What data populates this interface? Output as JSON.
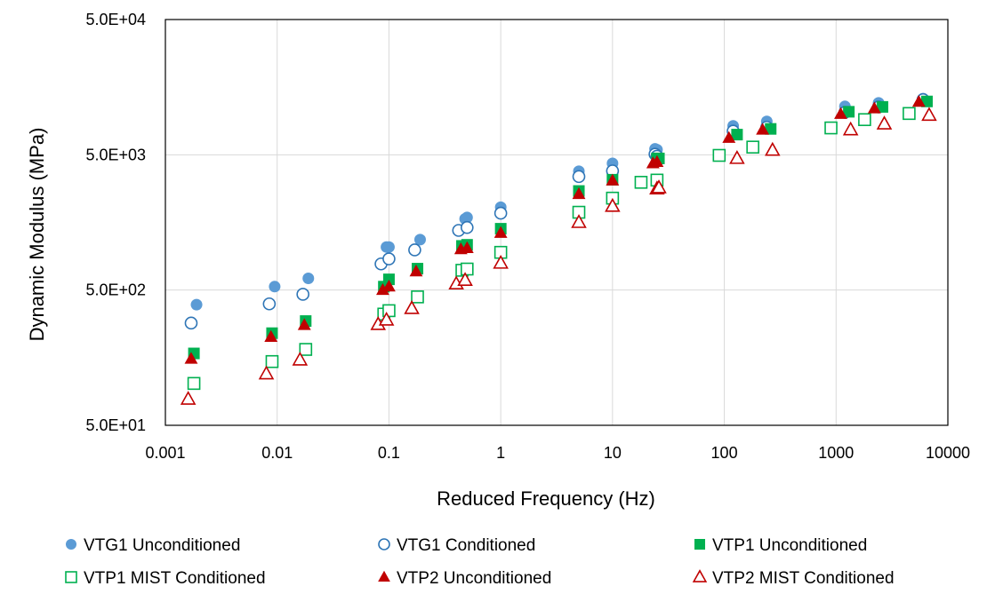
{
  "chart_data": {
    "type": "scatter",
    "xlabel": "Reduced Frequency (Hz)",
    "ylabel": "Dynamic Modulus (MPa)",
    "x_scale": "log",
    "y_scale": "log",
    "xlim": [
      0.001,
      10000
    ],
    "ylim": [
      50,
      50000
    ],
    "x_ticks": [
      0.001,
      0.01,
      0.1,
      1,
      10,
      100,
      1000,
      10000
    ],
    "x_tick_labels": [
      "0.001",
      "0.01",
      "0.1",
      "1",
      "10",
      "100",
      "1000",
      "10000"
    ],
    "y_ticks": [
      50,
      500,
      5000,
      50000
    ],
    "y_tick_labels": [
      "5.0E+01",
      "5.0E+02",
      "5.0E+03",
      "5.0E+04"
    ],
    "grid": true,
    "legend_position": "bottom",
    "series": [
      {
        "name": "VTG1 Unconditioned",
        "marker": "circle",
        "filled": true,
        "color": "#5b9bd5",
        "points": [
          [
            0.0019,
            390
          ],
          [
            0.0095,
            530
          ],
          [
            0.019,
            610
          ],
          [
            0.095,
            1040
          ],
          [
            0.1,
            1040
          ],
          [
            0.19,
            1180
          ],
          [
            0.48,
            1680
          ],
          [
            0.5,
            1720
          ],
          [
            1.0,
            2050
          ],
          [
            5.0,
            3780
          ],
          [
            10,
            4320
          ],
          [
            24,
            5530
          ],
          [
            25,
            5450
          ],
          [
            120,
            8180
          ],
          [
            240,
            8820
          ],
          [
            1200,
            11400
          ],
          [
            2400,
            12100
          ],
          [
            6000,
            13000
          ]
        ]
      },
      {
        "name": "VTG1 Conditioned",
        "marker": "circle",
        "filled": false,
        "color": "#2e75b6",
        "points": [
          [
            0.0017,
            285
          ],
          [
            0.0085,
            395
          ],
          [
            0.017,
            465
          ],
          [
            0.085,
            780
          ],
          [
            0.1,
            850
          ],
          [
            0.17,
            990
          ],
          [
            0.42,
            1380
          ],
          [
            0.5,
            1450
          ],
          [
            1.0,
            1850
          ],
          [
            5.0,
            3450
          ],
          [
            10,
            3800
          ],
          [
            24,
            5050
          ],
          [
            25,
            4880
          ],
          [
            120,
            7480
          ],
          [
            240,
            8000
          ],
          [
            1200,
            10300
          ],
          [
            2400,
            11300
          ],
          [
            6000,
            12800
          ]
        ]
      },
      {
        "name": "VTP1 Unconditioned",
        "marker": "square",
        "filled": true,
        "color": "#00b050",
        "points": [
          [
            0.0018,
            170
          ],
          [
            0.009,
            240
          ],
          [
            0.018,
            295
          ],
          [
            0.09,
            530
          ],
          [
            0.1,
            600
          ],
          [
            0.18,
            720
          ],
          [
            0.45,
            1060
          ],
          [
            0.5,
            1080
          ],
          [
            1.0,
            1420
          ],
          [
            5.0,
            2700
          ],
          [
            10,
            3270
          ],
          [
            25,
            4700
          ],
          [
            26,
            4700
          ],
          [
            130,
            7050
          ],
          [
            260,
            7770
          ],
          [
            1300,
            10400
          ],
          [
            2600,
            11300
          ],
          [
            6500,
            12400
          ]
        ]
      },
      {
        "name": "VTP1 MIST Conditioned",
        "marker": "square",
        "filled": false,
        "color": "#00b050",
        "points": [
          [
            0.0018,
            102
          ],
          [
            0.009,
            148
          ],
          [
            0.018,
            182
          ],
          [
            0.09,
            332
          ],
          [
            0.1,
            352
          ],
          [
            0.18,
            445
          ],
          [
            0.45,
            700
          ],
          [
            0.5,
            715
          ],
          [
            1.0,
            950
          ],
          [
            5.0,
            1880
          ],
          [
            10,
            2390
          ],
          [
            18,
            3130
          ],
          [
            25,
            3250
          ],
          [
            90,
            4950
          ],
          [
            180,
            5700
          ],
          [
            900,
            7900
          ],
          [
            1800,
            9100
          ],
          [
            4500,
            10100
          ]
        ]
      },
      {
        "name": "VTP2 Unconditioned",
        "marker": "triangle",
        "filled": true,
        "color": "#c00000",
        "points": [
          [
            0.0017,
            155
          ],
          [
            0.0088,
            225
          ],
          [
            0.0175,
            275
          ],
          [
            0.088,
            500
          ],
          [
            0.1,
            530
          ],
          [
            0.175,
            685
          ],
          [
            0.44,
            1000
          ],
          [
            0.5,
            1020
          ],
          [
            1.0,
            1320
          ],
          [
            5.0,
            2560
          ],
          [
            10,
            3220
          ],
          [
            23,
            4320
          ],
          [
            25,
            4420
          ],
          [
            110,
            6650
          ],
          [
            220,
            7650
          ],
          [
            1100,
            10000
          ],
          [
            2200,
            11000
          ],
          [
            5500,
            12300
          ]
        ]
      },
      {
        "name": "VTP2 MIST Conditioned",
        "marker": "triangle",
        "filled": false,
        "color": "#c00000",
        "points": [
          [
            0.0016,
            78
          ],
          [
            0.008,
            120
          ],
          [
            0.016,
            152
          ],
          [
            0.08,
            278
          ],
          [
            0.095,
            300
          ],
          [
            0.16,
            365
          ],
          [
            0.4,
            555
          ],
          [
            0.48,
            590
          ],
          [
            1.0,
            790
          ],
          [
            5.0,
            1580
          ],
          [
            10,
            2080
          ],
          [
            25,
            2800
          ],
          [
            26,
            2850
          ],
          [
            130,
            4700
          ],
          [
            270,
            5400
          ],
          [
            1350,
            7650
          ],
          [
            2700,
            8450
          ],
          [
            6800,
            9800
          ]
        ]
      }
    ]
  }
}
